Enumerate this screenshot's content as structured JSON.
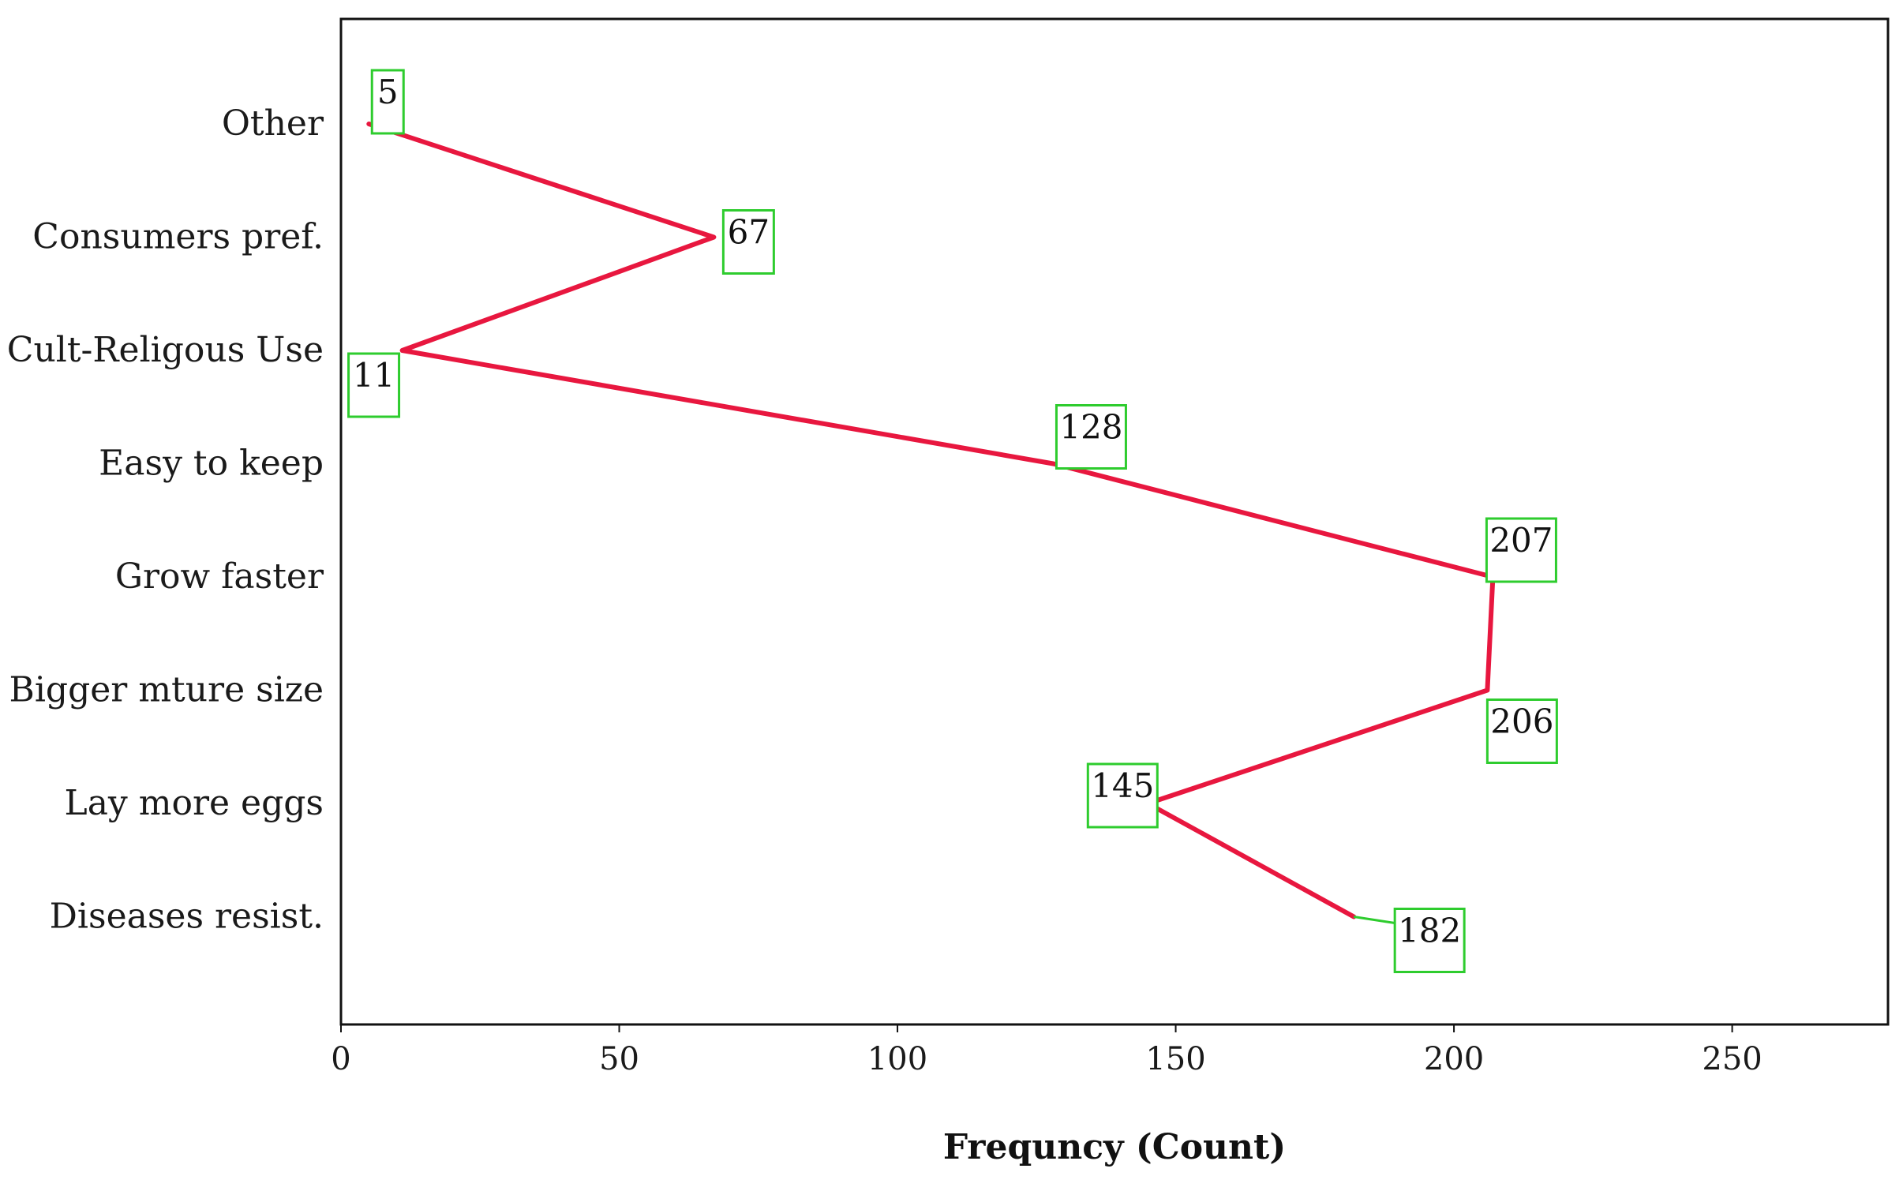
{
  "colors": {
    "line": "#e8173f",
    "label_box": "#2ecc2e",
    "frame": "#111111"
  },
  "chart_data": {
    "type": "line",
    "orientation": "horizontal",
    "title": "",
    "xlabel": "Frequncy (Count)",
    "ylabel": "",
    "xlim": [
      0,
      278
    ],
    "x_ticks": [
      0,
      50,
      100,
      150,
      200,
      250
    ],
    "grid": false,
    "legend": "none",
    "categories": [
      "Other",
      "Consumers pref.",
      "Cult-Religous Use",
      "Easy to keep",
      "Grow faster",
      "Bigger mture size",
      "Lay more eggs",
      "Diseases resist."
    ],
    "series": [
      {
        "values": [
          5,
          67,
          11,
          128,
          207,
          206,
          145,
          182
        ]
      }
    ]
  }
}
